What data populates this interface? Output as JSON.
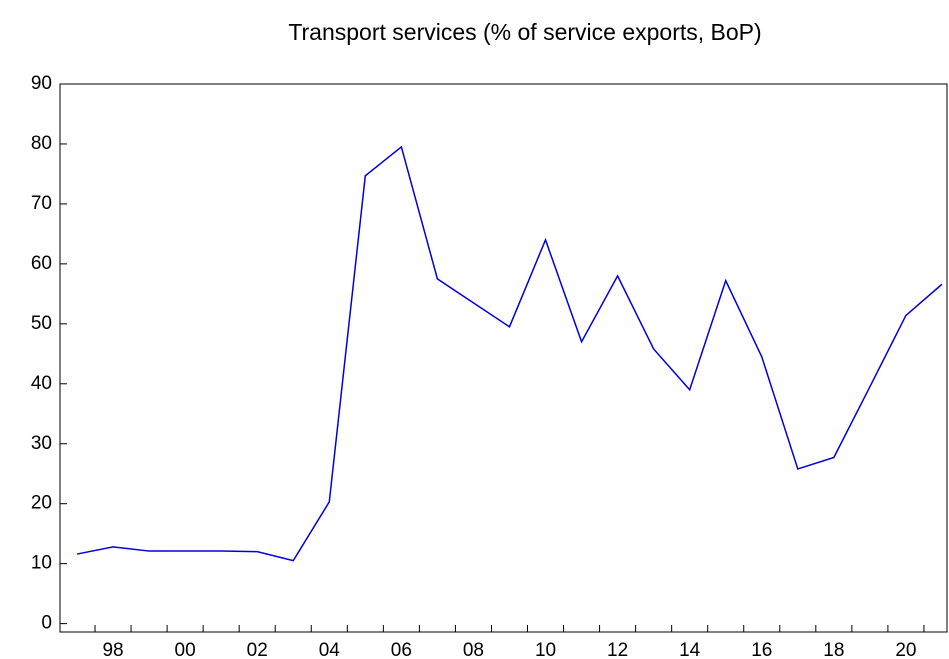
{
  "chart_data": {
    "type": "line",
    "title": "Transport services (% of service exports, BoP)",
    "categories": [
      null,
      "98",
      null,
      "00",
      null,
      "02",
      null,
      "04",
      null,
      "06",
      null,
      "08",
      null,
      "10",
      null,
      "12",
      null,
      "14",
      null,
      "16",
      null,
      "18",
      null,
      "20",
      null
    ],
    "series": [
      {
        "color": "#0000dd",
        "values": [
          11.6,
          12.8,
          12.1,
          12.1,
          12.1,
          12.0,
          10.5,
          20.3,
          74.7,
          79.5,
          57.5,
          53.5,
          49.5,
          64.0,
          47.0,
          58.0,
          45.8,
          39.0,
          57.2,
          44.5,
          25.8,
          27.7,
          39.5,
          51.4,
          56.6
        ]
      }
    ],
    "ylim": [
      -1.4,
      90
    ],
    "yticks": [
      0,
      10,
      20,
      30,
      40,
      50,
      60,
      70,
      80,
      90
    ]
  }
}
